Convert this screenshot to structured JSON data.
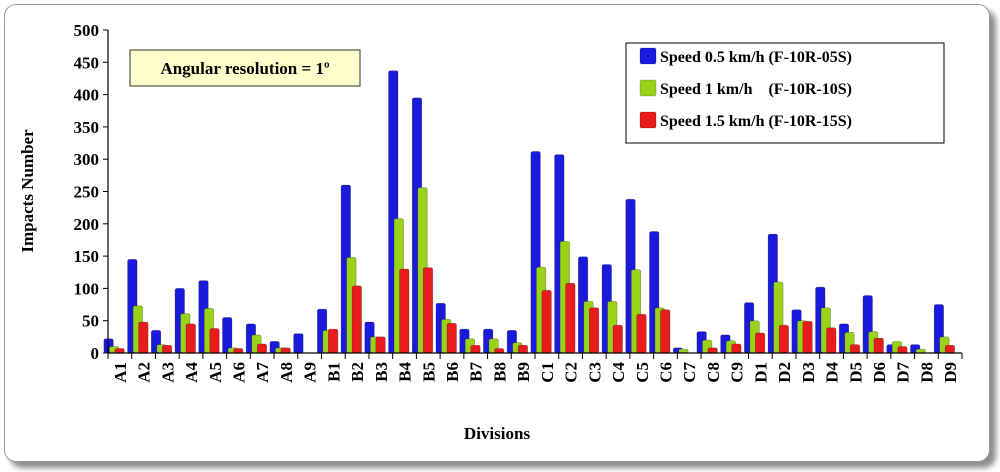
{
  "chart_data": {
    "type": "bar",
    "xlabel": "Divisions",
    "ylabel": "Impacts Number",
    "ylim": [
      0,
      500
    ],
    "yticks": [
      "0",
      "50",
      "100",
      "150",
      "200",
      "250",
      "300",
      "350",
      "400",
      "450",
      "500"
    ],
    "grid": false,
    "legend_position": "top-right",
    "annotation": "Angular resolution = 1º",
    "categories": [
      "A1",
      "A2",
      "A3",
      "A4",
      "A5",
      "A6",
      "A7",
      "A8",
      "A9",
      "B1",
      "B2",
      "B3",
      "B4",
      "B5",
      "B6",
      "B7",
      "B8",
      "B9",
      "C1",
      "C2",
      "C3",
      "C4",
      "C5",
      "C6",
      "C7",
      "C8",
      "C9",
      "D1",
      "D2",
      "D3",
      "D4",
      "D5",
      "D6",
      "D7",
      "D8",
      "D9"
    ],
    "series": [
      {
        "name": "Speed 0.5 km/h (F-10R-05S)",
        "color": "#1a1adc",
        "values": [
          22,
          145,
          35,
          100,
          112,
          55,
          45,
          18,
          30,
          68,
          260,
          48,
          437,
          395,
          77,
          37,
          37,
          35,
          312,
          307,
          149,
          137,
          238,
          188,
          8,
          33,
          28,
          78,
          184,
          67,
          102,
          45,
          89,
          13,
          13,
          75
        ]
      },
      {
        "name": "Speed 1 km/h    (F-10R-10S)",
        "color": "#9ad21a",
        "values": [
          10,
          73,
          13,
          61,
          69,
          8,
          28,
          8,
          0,
          35,
          148,
          25,
          208,
          256,
          52,
          22,
          22,
          16,
          133,
          173,
          80,
          80,
          129,
          70,
          6,
          20,
          19,
          50,
          110,
          50,
          70,
          32,
          33,
          18,
          6,
          25
        ]
      },
      {
        "name": "Speed 1.5 km/h (F-10R-15S)",
        "color": "#e81c1c",
        "values": [
          7,
          48,
          12,
          45,
          38,
          7,
          14,
          8,
          0,
          37,
          104,
          25,
          130,
          132,
          46,
          12,
          7,
          12,
          97,
          108,
          70,
          43,
          60,
          67,
          0,
          8,
          14,
          31,
          43,
          49,
          39,
          13,
          23,
          10,
          0,
          12
        ]
      }
    ]
  }
}
